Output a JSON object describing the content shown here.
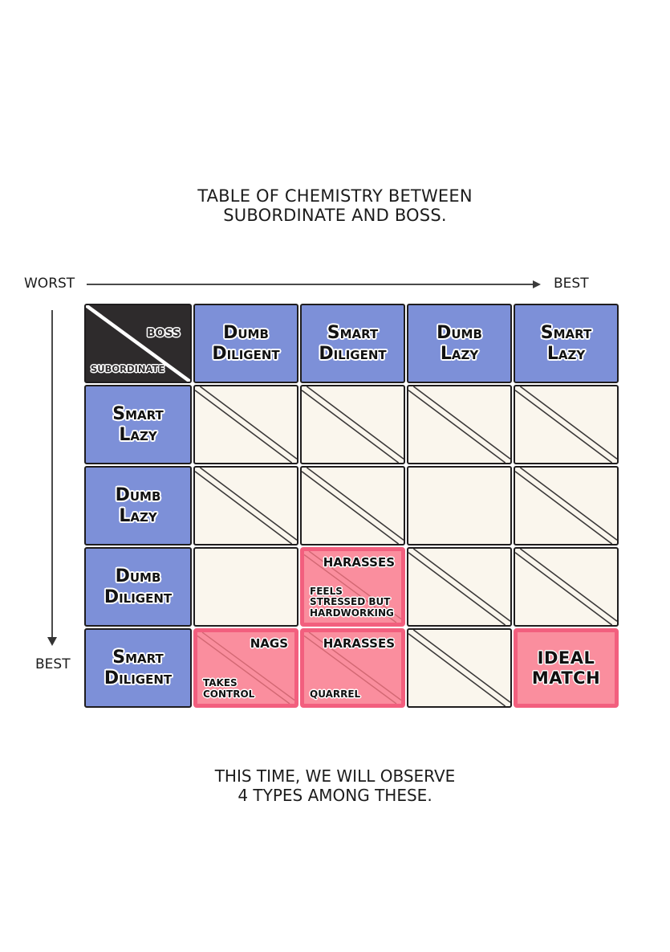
{
  "page": {
    "title_lines": [
      "TABLE OF CHEMISTRY BETWEEN",
      "SUBORDINATE AND BOSS."
    ],
    "caption_lines": [
      "THIS TIME, WE WILL OBSERVE",
      "4 TYPES AMONG THESE."
    ]
  },
  "axes": {
    "horizontal": {
      "left": "WORST",
      "right": "BEST"
    },
    "vertical": {
      "end": "BEST"
    }
  },
  "table": {
    "corner": {
      "top_right": "BOSS",
      "bottom_left": "SUBORDINATE"
    },
    "column_headers": [
      "Dumb Diligent",
      "Smart Diligent",
      "Dumb Lazy",
      "Smart Lazy"
    ],
    "row_headers": [
      "Smart Lazy",
      "Dumb Lazy",
      "Dumb Diligent",
      "Smart Diligent"
    ],
    "cells": [
      [
        {
          "state": "crossed"
        },
        {
          "state": "crossed"
        },
        {
          "state": "crossed"
        },
        {
          "state": "crossed"
        }
      ],
      [
        {
          "state": "crossed"
        },
        {
          "state": "crossed"
        },
        {
          "state": "empty"
        },
        {
          "state": "crossed"
        }
      ],
      [
        {
          "state": "empty"
        },
        {
          "state": "highlight",
          "crossed": true,
          "top_label": "HARASSES",
          "bottom_lines": [
            "FEELS",
            "STRESSED BUT",
            "HARDWORKING"
          ]
        },
        {
          "state": "crossed"
        },
        {
          "state": "crossed"
        }
      ],
      [
        {
          "state": "highlight",
          "crossed": true,
          "top_label": "NAGS",
          "bottom_lines": [
            "TAKES",
            "CONTROL"
          ]
        },
        {
          "state": "highlight",
          "crossed": true,
          "top_label": "HARASSES",
          "bottom_lines": [
            "QUARREL"
          ]
        },
        {
          "state": "crossed"
        },
        {
          "state": "highlight",
          "crossed": false,
          "center_lines": [
            "IDEAL",
            "MATCH"
          ]
        }
      ]
    ]
  },
  "colors": {
    "header_blue": "#7d90d8",
    "corner_dark": "#2e2b2c",
    "cell_cream": "#faf6ed",
    "highlight_fill": "#fa8e9e",
    "highlight_border": "#f25f7e",
    "grid_line": "#3c3a3a",
    "highlight_line": "#d26873",
    "text": "#161616"
  }
}
